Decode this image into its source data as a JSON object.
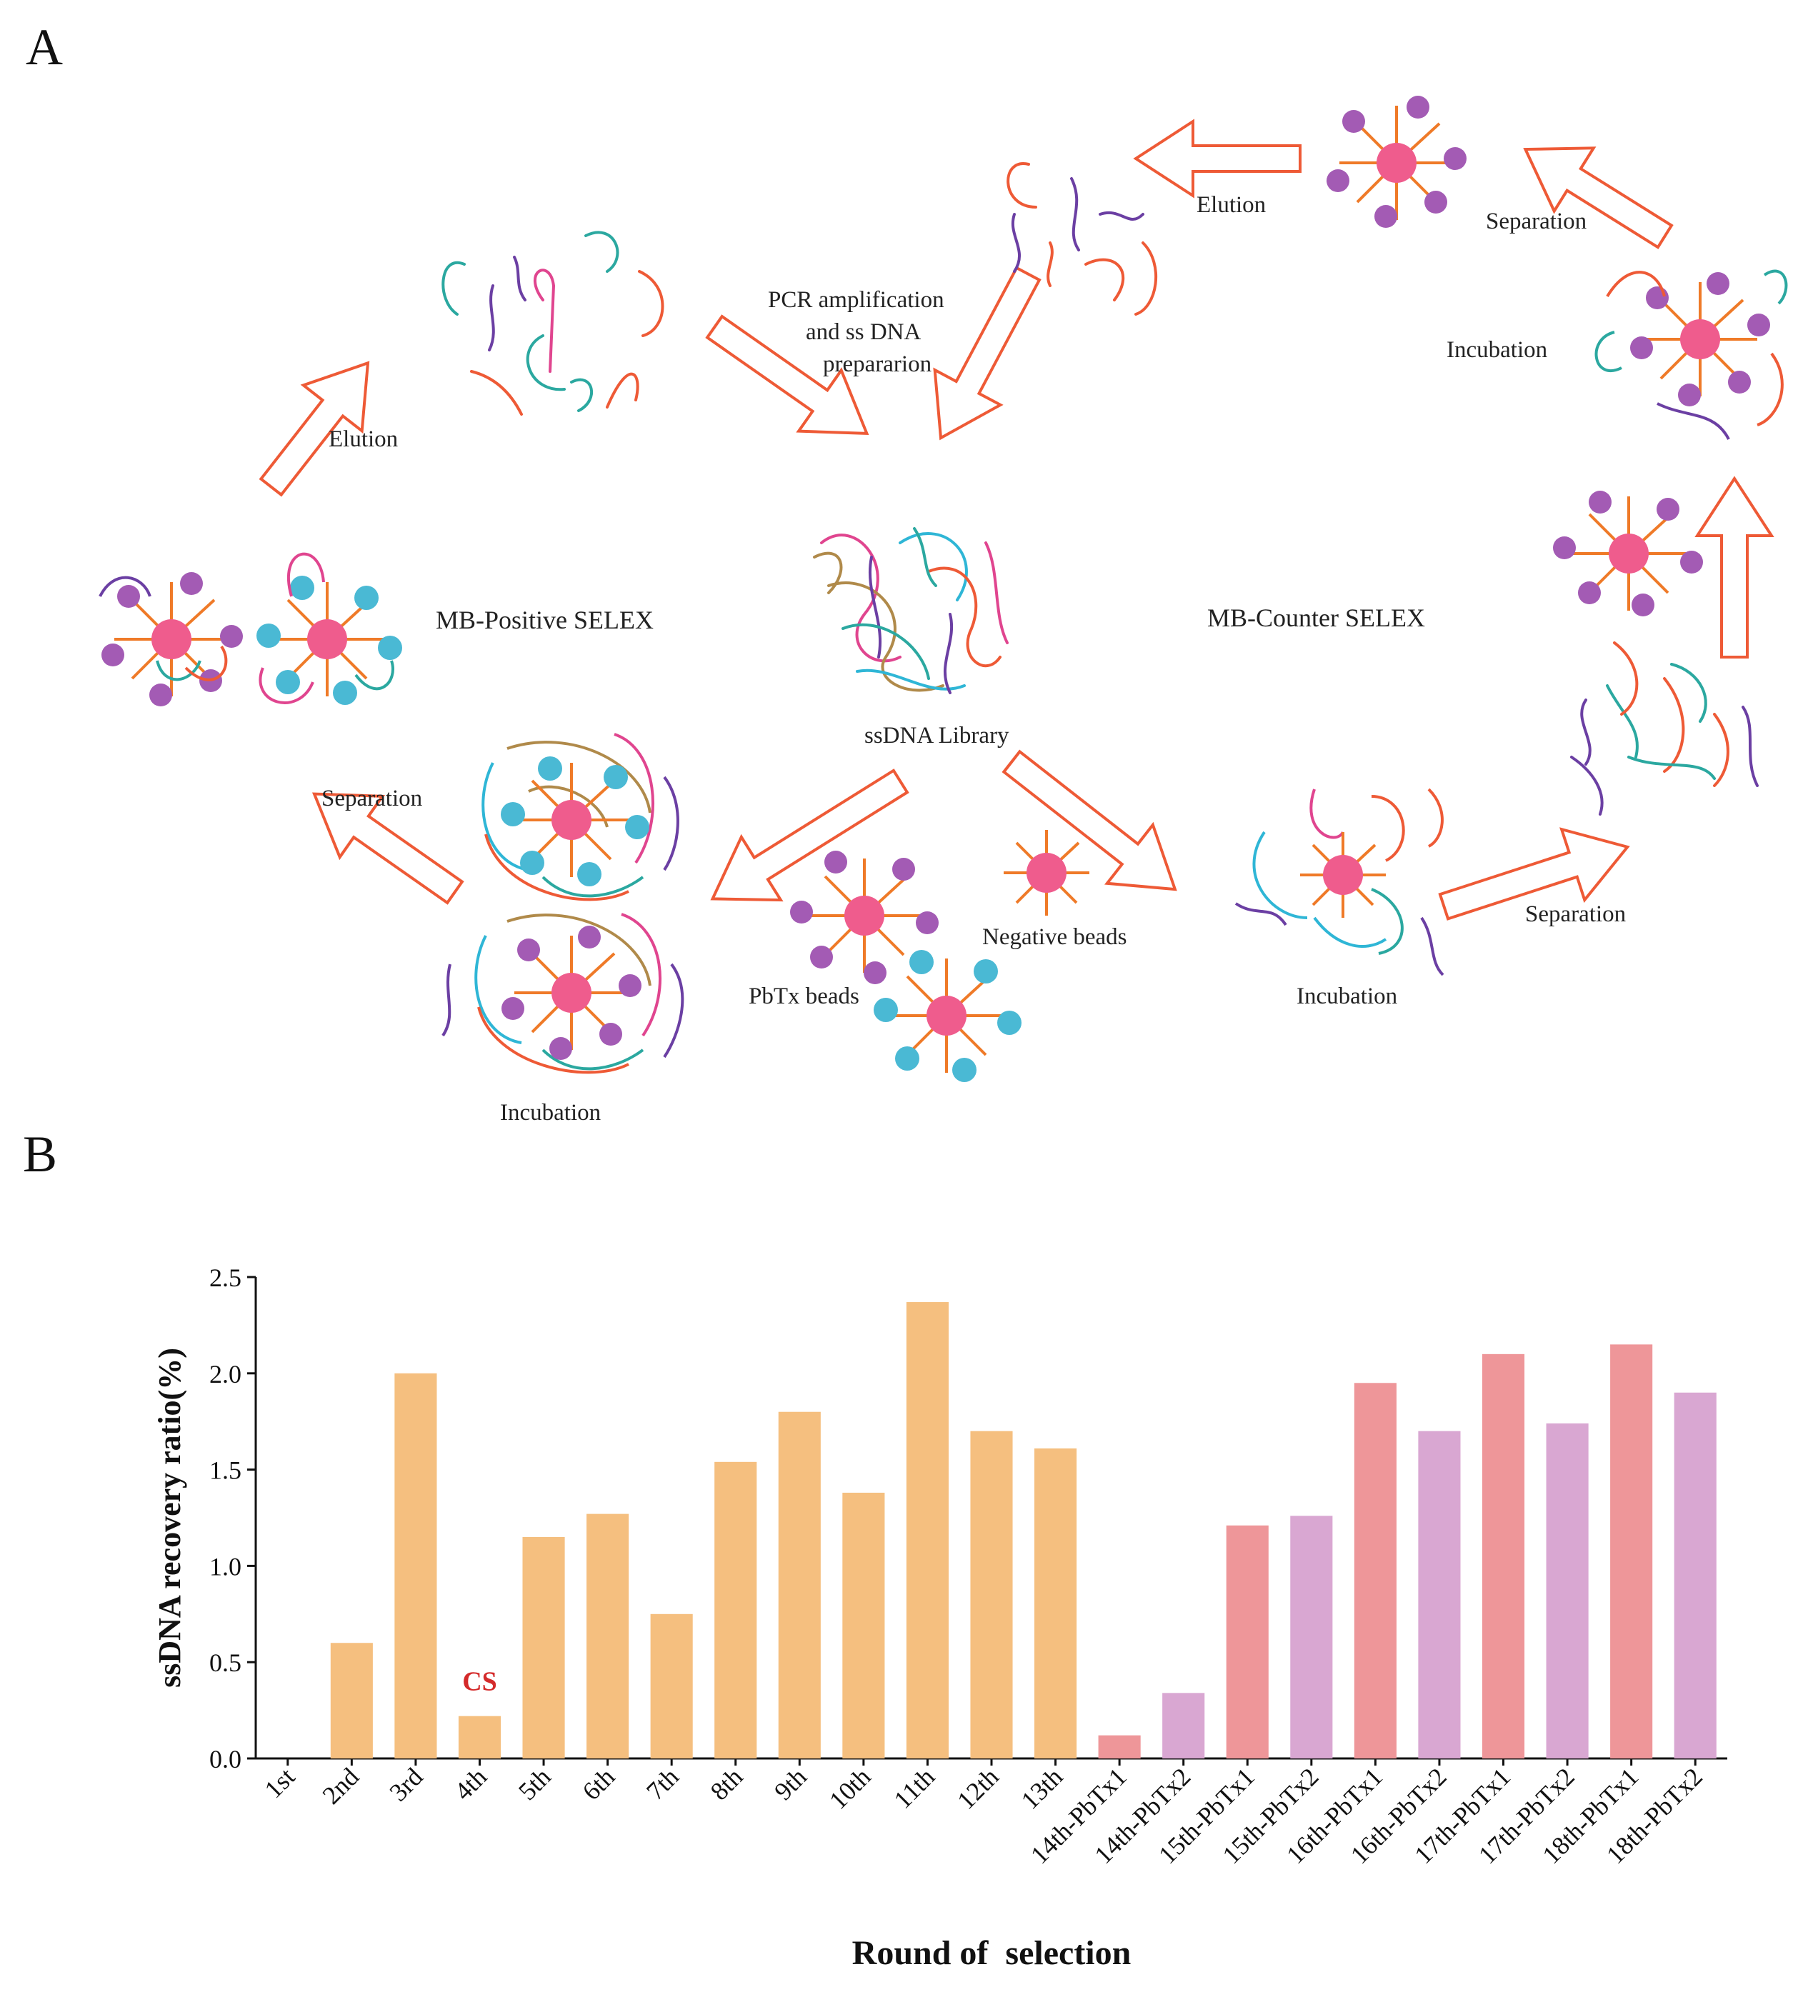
{
  "panel_a": {
    "letter": "A",
    "labels": {
      "elution_left": "Elution",
      "pcr_line1": "PCR amplification",
      "pcr_line2": "and ss DNA",
      "pcr_line3": "prepararion",
      "elution_right": "Elution",
      "separation_top": "Separation",
      "incubation_right": "Incubation",
      "mb_positive": "MB-Positive SELEX",
      "mb_counter": "MB-Counter SELEX",
      "library": "ssDNA Library",
      "separation_left": "Separation",
      "negative_beads": "Negative beads",
      "pbtx_beads": "PbTx beads",
      "incubation_mid": "Incubation",
      "separation_bottom": "Separation",
      "incubation_bottom": "Incubation"
    },
    "colors": {
      "arrow": "#ee5a36",
      "bead": "#ef5c8d",
      "spoke": "#ef7a28",
      "purple_ball": "#a35bb4",
      "cyan_ball": "#4ab9d4",
      "strand_red": "#ee5a36",
      "strand_purple": "#6b3fa3",
      "strand_teal": "#2ba8a0",
      "strand_pink": "#e0458f",
      "strand_cyan": "#2fb6d6",
      "strand_brown": "#b08a4a"
    }
  },
  "panel_b": {
    "letter": "B"
  },
  "chart_data": {
    "type": "bar",
    "categories": [
      "1st",
      "2nd",
      "3rd",
      "4th",
      "5th",
      "6th",
      "7th",
      "8th",
      "9th",
      "10th",
      "11th",
      "12th",
      "13th",
      "14th-PbTx1",
      "14th-PbTx2",
      "15th-PbTx1",
      "15th-PbTx2",
      "16th-PbTx1",
      "16th-PbTx2",
      "17th-PbTx1",
      "17th-PbTx2",
      "18th-PbTx1",
      "18th-PbTx2"
    ],
    "values": [
      0,
      0.6,
      2.0,
      0.22,
      1.15,
      1.27,
      0.75,
      1.54,
      1.8,
      1.38,
      2.37,
      1.7,
      1.61,
      0.12,
      0.34,
      1.21,
      1.26,
      1.95,
      1.7,
      2.1,
      1.74,
      2.15,
      1.9
    ],
    "bar_groups": [
      "orange",
      "orange",
      "orange",
      "orange",
      "orange",
      "orange",
      "orange",
      "orange",
      "orange",
      "orange",
      "orange",
      "orange",
      "orange",
      "red",
      "purple",
      "red",
      "purple",
      "red",
      "purple",
      "red",
      "purple",
      "red",
      "purple"
    ],
    "group_colors": {
      "orange": "#f5bf7f",
      "red": "#ee9699",
      "purple": "#d9a7d2"
    },
    "ylabel": "ssDNA recovery ratio(%)",
    "xlabel": "Round of  selection",
    "ylim": [
      0,
      2.5
    ],
    "yticks": [
      0.0,
      0.5,
      1.0,
      1.5,
      2.0,
      2.5
    ],
    "ytick_labels": [
      "0.0",
      "0.5",
      "1.0",
      "1.5",
      "2.0",
      "2.5"
    ],
    "annotations": [
      {
        "category": "4th",
        "text": "CS",
        "color": "#d42a2a"
      }
    ],
    "grid": false
  }
}
